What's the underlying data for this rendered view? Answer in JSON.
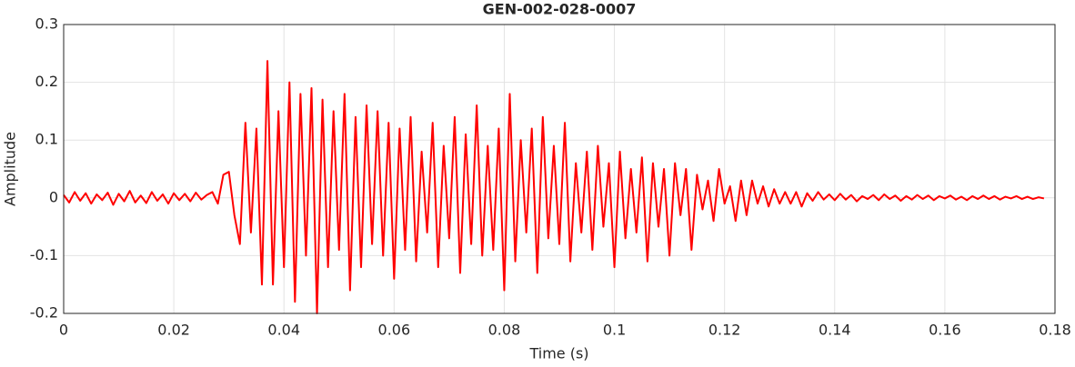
{
  "chart_data": {
    "type": "line",
    "title": "GEN-002-028-0007",
    "xlabel": "Time (s)",
    "ylabel": "Amplitude",
    "color": "#ff0000",
    "grid": true,
    "xlim": [
      0,
      0.18
    ],
    "ylim": [
      -0.2,
      0.3
    ],
    "xticks": [
      0,
      0.02,
      0.04,
      0.06,
      0.08,
      0.1,
      0.12,
      0.14,
      0.16,
      0.18
    ],
    "yticks": [
      -0.2,
      -0.1,
      0,
      0.1,
      0.2,
      0.3
    ],
    "x": [
      0,
      0.001,
      0.002,
      0.003,
      0.004,
      0.005,
      0.006,
      0.007,
      0.008,
      0.009,
      0.01,
      0.011,
      0.012,
      0.013,
      0.014,
      0.015,
      0.016,
      0.017,
      0.018,
      0.019,
      0.02,
      0.021,
      0.022,
      0.023,
      0.024,
      0.025,
      0.026,
      0.027,
      0.028,
      0.029,
      0.03,
      0.031,
      0.032,
      0.033,
      0.034,
      0.035,
      0.036,
      0.037,
      0.038,
      0.039,
      0.04,
      0.041,
      0.042,
      0.043,
      0.044,
      0.045,
      0.046,
      0.047,
      0.048,
      0.049,
      0.05,
      0.051,
      0.052,
      0.053,
      0.054,
      0.055,
      0.056,
      0.057,
      0.058,
      0.059,
      0.06,
      0.061,
      0.062,
      0.063,
      0.064,
      0.065,
      0.066,
      0.067,
      0.068,
      0.069,
      0.07,
      0.071,
      0.072,
      0.073,
      0.074,
      0.075,
      0.076,
      0.077,
      0.078,
      0.079,
      0.08,
      0.081,
      0.082,
      0.083,
      0.084,
      0.085,
      0.086,
      0.087,
      0.088,
      0.089,
      0.09,
      0.091,
      0.092,
      0.093,
      0.094,
      0.095,
      0.096,
      0.097,
      0.098,
      0.099,
      0.1,
      0.101,
      0.102,
      0.103,
      0.104,
      0.105,
      0.106,
      0.107,
      0.108,
      0.109,
      0.11,
      0.111,
      0.112,
      0.113,
      0.114,
      0.115,
      0.116,
      0.117,
      0.118,
      0.119,
      0.12,
      0.121,
      0.122,
      0.123,
      0.124,
      0.125,
      0.126,
      0.127,
      0.128,
      0.129,
      0.13,
      0.131,
      0.132,
      0.133,
      0.134,
      0.135,
      0.136,
      0.137,
      0.138,
      0.139,
      0.14,
      0.141,
      0.142,
      0.143,
      0.144,
      0.145,
      0.146,
      0.147,
      0.148,
      0.149,
      0.15,
      0.151,
      0.152,
      0.153,
      0.154,
      0.155,
      0.156,
      0.157,
      0.158,
      0.159,
      0.16,
      0.161,
      0.162,
      0.163,
      0.164,
      0.165,
      0.166,
      0.167,
      0.168,
      0.169,
      0.17,
      0.171,
      0.172,
      0.173,
      0.174,
      0.175,
      0.176,
      0.177,
      0.178
    ],
    "values": [
      0.005,
      -0.008,
      0.01,
      -0.005,
      0.008,
      -0.01,
      0.006,
      -0.004,
      0.009,
      -0.012,
      0.007,
      -0.006,
      0.012,
      -0.008,
      0.004,
      -0.009,
      0.01,
      -0.005,
      0.006,
      -0.01,
      0.008,
      -0.004,
      0.007,
      -0.006,
      0.009,
      -0.003,
      0.005,
      0.01,
      -0.01,
      0.04,
      0.045,
      -0.03,
      -0.08,
      0.13,
      -0.06,
      0.12,
      -0.15,
      0.237,
      -0.15,
      0.15,
      -0.12,
      0.2,
      -0.18,
      0.18,
      -0.1,
      0.19,
      -0.2,
      0.17,
      -0.12,
      0.15,
      -0.09,
      0.18,
      -0.16,
      0.14,
      -0.12,
      0.16,
      -0.08,
      0.15,
      -0.1,
      0.13,
      -0.14,
      0.12,
      -0.09,
      0.14,
      -0.11,
      0.08,
      -0.06,
      0.13,
      -0.12,
      0.09,
      -0.07,
      0.14,
      -0.13,
      0.11,
      -0.08,
      0.16,
      -0.1,
      0.09,
      -0.09,
      0.12,
      -0.16,
      0.18,
      -0.11,
      0.1,
      -0.06,
      0.12,
      -0.13,
      0.14,
      -0.07,
      0.09,
      -0.08,
      0.13,
      -0.11,
      0.06,
      -0.06,
      0.08,
      -0.09,
      0.09,
      -0.05,
      0.06,
      -0.12,
      0.08,
      -0.07,
      0.05,
      -0.06,
      0.07,
      -0.11,
      0.06,
      -0.05,
      0.05,
      -0.1,
      0.06,
      -0.03,
      0.05,
      -0.09,
      0.04,
      -0.02,
      0.03,
      -0.04,
      0.05,
      -0.01,
      0.02,
      -0.04,
      0.03,
      -0.03,
      0.03,
      -0.01,
      0.02,
      -0.015,
      0.015,
      -0.01,
      0.01,
      -0.01,
      0.01,
      -0.015,
      0.008,
      -0.005,
      0.01,
      -0.003,
      0.006,
      -0.004,
      0.007,
      -0.003,
      0.005,
      -0.006,
      0.003,
      -0.002,
      0.005,
      -0.004,
      0.006,
      -0.002,
      0.004,
      -0.005,
      0.003,
      -0.003,
      0.005,
      -0.002,
      0.004,
      -0.004,
      0.003,
      -0.001,
      0.004,
      -0.003,
      0.002,
      -0.004,
      0.003,
      -0.002,
      0.004,
      -0.002,
      0.003,
      -0.003,
      0.002,
      -0.001,
      0.003,
      -0.002,
      0.002,
      -0.002,
      0.001,
      -0.001
    ]
  }
}
